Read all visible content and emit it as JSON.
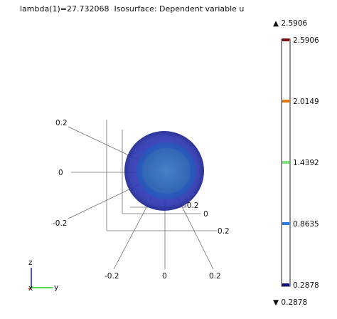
{
  "title": "lambda(1)=27.732068  Isosurface: Dependent variable u",
  "chart_data": {
    "type": "isosurface",
    "plot_title": "lambda(1)=27.732068  Isosurface: Dependent variable u",
    "variable": "u",
    "eigenvalue_lambda1": 27.732068,
    "colorbar": {
      "max": 2.5906,
      "min": 0.2878,
      "max_marker_label": "2.5906",
      "min_marker_label": "0.2878",
      "tick_labels": [
        "2.5906",
        "2.0149",
        "1.4392",
        "0.8635",
        "0.2878"
      ],
      "levels": [
        {
          "value": 2.5906,
          "label": "2.5906",
          "color": "#7a0d0d"
        },
        {
          "value": 2.0149,
          "label": "2.0149",
          "color": "#e07a10"
        },
        {
          "value": 1.4392,
          "label": "1.4392",
          "color": "#7de07d"
        },
        {
          "value": 0.8635,
          "label": "0.8635",
          "color": "#2a79e0"
        },
        {
          "value": 0.2878,
          "label": "0.2878",
          "color": "#0d0d7a"
        }
      ]
    },
    "axes_3d": {
      "x_tick_labels": [
        "-0.2",
        "0",
        "0.2"
      ],
      "y_tick_labels": [
        "-0.2",
        "0",
        "0.2"
      ],
      "z_tick_labels": [
        "-0.2",
        "0",
        "0.2"
      ]
    },
    "triad_labels": {
      "x": "x",
      "y": "y",
      "z": "z"
    },
    "surface_colors": {
      "outer": "#2c36b0",
      "inner": "#2f7fd6"
    }
  }
}
